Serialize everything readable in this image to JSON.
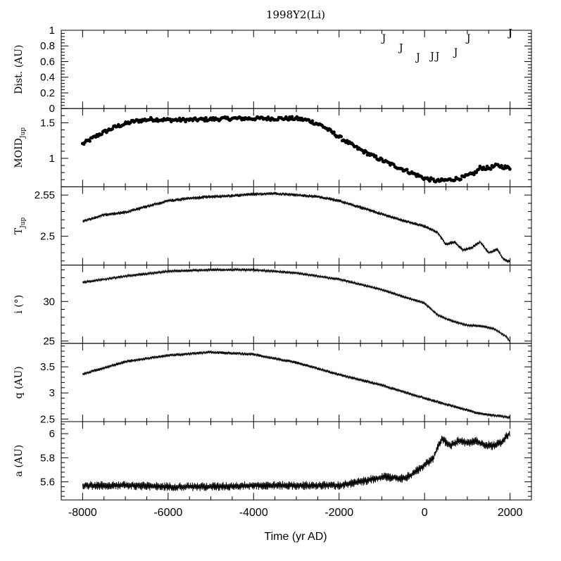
{
  "chart_data": {
    "type": "line",
    "title": "1998Y2(Li)",
    "xlabel": "Time (yr AD)",
    "xlim": [
      -8500,
      2500
    ],
    "xticks": [
      "-8000",
      "-6000",
      "-4000",
      "-2000",
      "0",
      "2000"
    ],
    "panels": [
      {
        "id": "dist",
        "ylabel": "Dist. (AU)",
        "ylim": [
          0,
          1
        ],
        "yticks": [
          "0",
          "0.2",
          "0.4",
          "0.6",
          "0.8",
          "1"
        ],
        "kind": "marker",
        "marker_text": "J",
        "points": [
          [
            -950,
            0.9
          ],
          [
            -550,
            0.78
          ],
          [
            -150,
            0.66
          ],
          [
            180,
            0.67
          ],
          [
            300,
            0.67
          ],
          [
            730,
            0.72
          ],
          [
            1030,
            0.9
          ],
          [
            2010,
            0.97
          ]
        ]
      },
      {
        "id": "moid",
        "ylabel_main": "MOID",
        "ylabel_sub": "Jup",
        "ylim": [
          0.6,
          1.7
        ],
        "yticks": [
          "1",
          "1.5"
        ],
        "kind": "scatter",
        "anchors": [
          [
            -8000,
            1.2
          ],
          [
            -7600,
            1.34
          ],
          [
            -7200,
            1.45
          ],
          [
            -6800,
            1.52
          ],
          [
            -6400,
            1.55
          ],
          [
            -6000,
            1.54
          ],
          [
            -5500,
            1.54
          ],
          [
            -5000,
            1.55
          ],
          [
            -4500,
            1.56
          ],
          [
            -4000,
            1.56
          ],
          [
            -3500,
            1.56
          ],
          [
            -3000,
            1.56
          ],
          [
            -2700,
            1.53
          ],
          [
            -2400,
            1.46
          ],
          [
            -2000,
            1.3
          ],
          [
            -1600,
            1.15
          ],
          [
            -1200,
            1.03
          ],
          [
            -800,
            0.92
          ],
          [
            -400,
            0.82
          ],
          [
            0,
            0.72
          ],
          [
            300,
            0.68
          ],
          [
            600,
            0.7
          ],
          [
            900,
            0.73
          ],
          [
            1200,
            0.8
          ],
          [
            1300,
            0.87
          ],
          [
            1500,
            0.86
          ],
          [
            1700,
            0.9
          ],
          [
            2000,
            0.86
          ]
        ],
        "noise": 0.025
      },
      {
        "id": "tjup",
        "ylabel_main": "T",
        "ylabel_sub": "Jup",
        "ylim": [
          2.465,
          2.56
        ],
        "yticks": [
          "2.5",
          "2.55"
        ],
        "kind": "line",
        "anchors": [
          [
            -8000,
            2.518
          ],
          [
            -7500,
            2.526
          ],
          [
            -7000,
            2.529
          ],
          [
            -6500,
            2.536
          ],
          [
            -6000,
            2.543
          ],
          [
            -5500,
            2.546
          ],
          [
            -5000,
            2.548
          ],
          [
            -4500,
            2.549
          ],
          [
            -4000,
            2.551
          ],
          [
            -3500,
            2.552
          ],
          [
            -3000,
            2.55
          ],
          [
            -2500,
            2.548
          ],
          [
            -2000,
            2.543
          ],
          [
            -1500,
            2.535
          ],
          [
            -1000,
            2.527
          ],
          [
            -500,
            2.519
          ],
          [
            0,
            2.512
          ],
          [
            300,
            2.505
          ],
          [
            500,
            2.49
          ],
          [
            700,
            2.493
          ],
          [
            900,
            2.483
          ],
          [
            1100,
            2.486
          ],
          [
            1300,
            2.493
          ],
          [
            1500,
            2.48
          ],
          [
            1700,
            2.484
          ],
          [
            1850,
            2.472
          ],
          [
            2000,
            2.469
          ]
        ],
        "noise": 0.0015
      },
      {
        "id": "incl",
        "ylabel": "i (°)",
        "ylim": [
          24.7,
          34.6
        ],
        "yticks": [
          "25",
          "30"
        ],
        "kind": "line",
        "anchors": [
          [
            -8000,
            32.4
          ],
          [
            -7000,
            33.2
          ],
          [
            -6000,
            33.8
          ],
          [
            -5000,
            34.0
          ],
          [
            -4000,
            34.0
          ],
          [
            -3000,
            33.6
          ],
          [
            -2000,
            32.8
          ],
          [
            -1000,
            31.5
          ],
          [
            -500,
            30.6
          ],
          [
            0,
            29.8
          ],
          [
            300,
            28.3
          ],
          [
            600,
            27.6
          ],
          [
            1000,
            27.0
          ],
          [
            1300,
            26.9
          ],
          [
            1600,
            26.6
          ],
          [
            1900,
            25.6
          ],
          [
            2000,
            24.9
          ]
        ],
        "noise": 0.12
      },
      {
        "id": "q",
        "ylabel": "q (AU)",
        "ylim": [
          2.45,
          3.95
        ],
        "yticks": [
          "2.5",
          "3",
          "3.5"
        ],
        "kind": "line",
        "anchors": [
          [
            -8000,
            3.36
          ],
          [
            -7000,
            3.6
          ],
          [
            -6000,
            3.72
          ],
          [
            -5000,
            3.78
          ],
          [
            -4000,
            3.74
          ],
          [
            -3000,
            3.58
          ],
          [
            -2000,
            3.35
          ],
          [
            -1000,
            3.15
          ],
          [
            -500,
            3.02
          ],
          [
            0,
            2.9
          ],
          [
            500,
            2.78
          ],
          [
            800,
            2.72
          ],
          [
            1200,
            2.62
          ],
          [
            1600,
            2.57
          ],
          [
            2000,
            2.53
          ]
        ],
        "noise": 0.02
      },
      {
        "id": "a",
        "ylabel": "a (AU)",
        "ylim": [
          5.45,
          6.1
        ],
        "yticks": [
          "5.6",
          "5.8",
          "6"
        ],
        "kind": "line",
        "anchors": [
          [
            -8000,
            5.57
          ],
          [
            -7000,
            5.57
          ],
          [
            -6000,
            5.56
          ],
          [
            -5000,
            5.56
          ],
          [
            -4000,
            5.57
          ],
          [
            -3000,
            5.57
          ],
          [
            -2000,
            5.57
          ],
          [
            -1500,
            5.6
          ],
          [
            -1000,
            5.64
          ],
          [
            -500,
            5.63
          ],
          [
            -300,
            5.66
          ],
          [
            0,
            5.74
          ],
          [
            200,
            5.79
          ],
          [
            300,
            5.88
          ],
          [
            400,
            5.96
          ],
          [
            600,
            5.9
          ],
          [
            800,
            5.94
          ],
          [
            1000,
            5.92
          ],
          [
            1200,
            5.94
          ],
          [
            1400,
            5.91
          ],
          [
            1600,
            5.9
          ],
          [
            1800,
            5.93
          ],
          [
            2000,
            6.01
          ]
        ],
        "noise": 0.025
      }
    ]
  }
}
